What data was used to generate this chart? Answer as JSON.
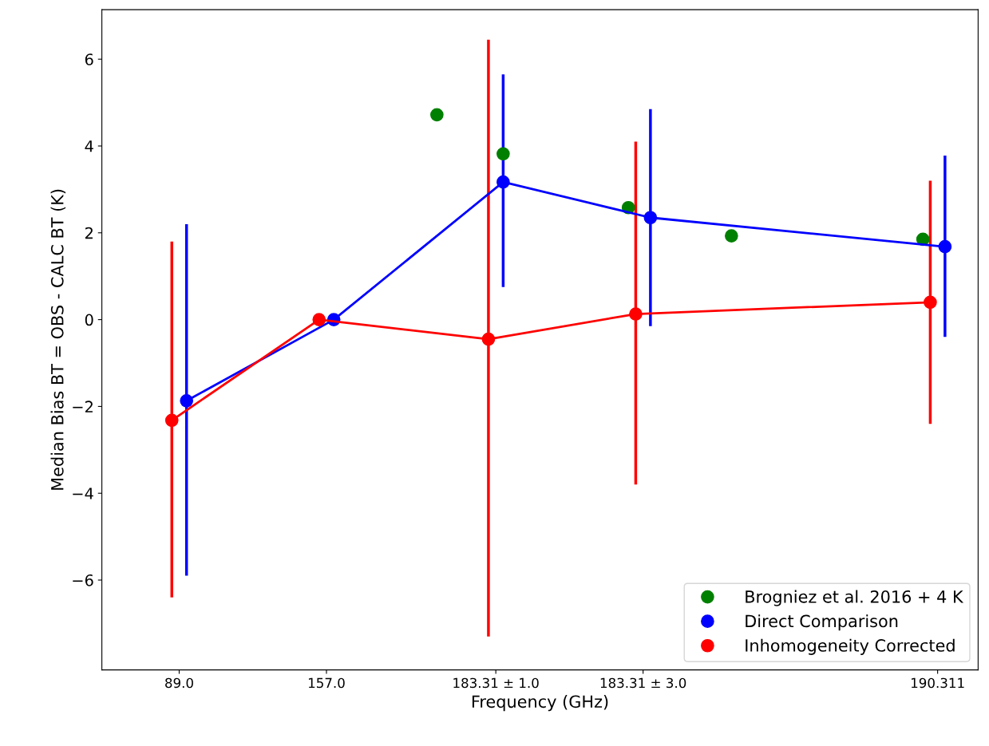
{
  "chart_data": {
    "type": "line",
    "xlabel": "Frequency (GHz)",
    "ylabel": "Median Bias BT = OBS - CALC BT (K)",
    "categories": [
      null,
      null,
      null,
      null,
      null,
      null,
      null,
      null,
      null,
      null,
      "89.0",
      null,
      null,
      null,
      null,
      null,
      null,
      null,
      null,
      null,
      null,
      null,
      null,
      null,
      null,
      null,
      null,
      null,
      null,
      null,
      "157.0",
      null,
      null,
      null,
      null,
      null,
      null,
      null,
      null,
      null,
      null,
      null,
      null,
      null,
      null,
      null,
      null,
      null,
      null,
      null,
      null,
      null,
      null,
      "183.31 ± 1.0",
      null,
      null,
      null,
      null,
      null,
      null,
      null,
      null,
      null,
      null,
      null,
      null,
      null,
      null,
      null,
      null,
      null,
      null,
      null,
      "183.31 ± 3.0",
      null,
      null,
      null,
      null,
      null,
      null,
      null,
      null,
      null,
      null,
      null,
      null,
      null,
      null,
      null,
      null,
      null,
      null,
      null,
      null,
      null,
      null,
      null,
      null,
      null,
      null,
      null,
      null,
      null,
      null,
      null,
      null,
      null,
      null,
      null,
      null,
      null,
      null,
      null,
      "190.311",
      null,
      null,
      null,
      null,
      null
    ],
    "ylim": [
      -8.07,
      7.14
    ],
    "yticks": [
      {
        "value": -6,
        "label": "−6"
      },
      {
        "value": -4,
        "label": "−4"
      },
      {
        "value": -2,
        "label": "−2"
      },
      0,
      2,
      4,
      6
    ],
    "legend": "bottom right",
    "marker": "circle",
    "series": [
      {
        "name": "Brogniez et al. 2016 + 4 K",
        "type": "scatter",
        "color": "#008000",
        "values": [
          null,
          null,
          null,
          null,
          null,
          null,
          null,
          null,
          null,
          null,
          null,
          null,
          null,
          null,
          null,
          null,
          null,
          null,
          null,
          null,
          null,
          null,
          null,
          null,
          null,
          null,
          null,
          null,
          null,
          null,
          null,
          null,
          null,
          null,
          null,
          null,
          null,
          null,
          null,
          null,
          null,
          null,
          null,
          null,
          null,
          4.72,
          null,
          null,
          null,
          null,
          null,
          null,
          null,
          null,
          3.82,
          null,
          null,
          null,
          null,
          null,
          null,
          null,
          null,
          null,
          null,
          null,
          null,
          null,
          null,
          null,
          null,
          2.58,
          null,
          null,
          null,
          null,
          null,
          null,
          null,
          null,
          null,
          null,
          null,
          null,
          null,
          1.93,
          null,
          null,
          null,
          null,
          null,
          null,
          null,
          null,
          null,
          null,
          null,
          null,
          null,
          null,
          null,
          null,
          null,
          null,
          null,
          null,
          null,
          null,
          null,
          null,
          null,
          1.85,
          null,
          null,
          null,
          null,
          null,
          null,
          null
        ]
      },
      {
        "name": "Direct Comparison",
        "color": "#0000ff",
        "values": [
          null,
          null,
          null,
          null,
          null,
          null,
          null,
          null,
          null,
          null,
          null,
          -1.87,
          null,
          null,
          null,
          null,
          null,
          null,
          null,
          null,
          null,
          null,
          null,
          null,
          null,
          null,
          null,
          null,
          null,
          null,
          null,
          0.0,
          null,
          null,
          null,
          null,
          null,
          null,
          null,
          null,
          null,
          null,
          null,
          null,
          null,
          null,
          null,
          null,
          null,
          null,
          null,
          null,
          null,
          null,
          3.17,
          null,
          null,
          null,
          null,
          null,
          null,
          null,
          null,
          null,
          null,
          null,
          null,
          null,
          null,
          null,
          null,
          null,
          null,
          null,
          2.35,
          null,
          null,
          null,
          null,
          null,
          null,
          null,
          null,
          null,
          null,
          null,
          null,
          null,
          null,
          null,
          null,
          null,
          null,
          null,
          null,
          null,
          null,
          null,
          null,
          null,
          null,
          null,
          null,
          null,
          null,
          null,
          null,
          null,
          null,
          null,
          null,
          null,
          null,
          null,
          1.68,
          null,
          null,
          null,
          null
        ],
        "errors": [
          null,
          null,
          null,
          null,
          null,
          null,
          null,
          null,
          null,
          null,
          null,
          [
            -5.9,
            2.2
          ],
          null,
          null,
          null,
          null,
          null,
          null,
          null,
          null,
          null,
          null,
          null,
          null,
          null,
          null,
          null,
          null,
          null,
          null,
          null,
          null,
          null,
          null,
          null,
          null,
          null,
          null,
          null,
          null,
          null,
          null,
          null,
          null,
          null,
          null,
          null,
          null,
          null,
          null,
          null,
          null,
          null,
          null,
          [
            0.75,
            5.65
          ],
          null,
          null,
          null,
          null,
          null,
          null,
          null,
          null,
          null,
          null,
          null,
          null,
          null,
          null,
          null,
          null,
          null,
          null,
          null,
          [
            -0.15,
            4.85
          ],
          null,
          null,
          null,
          null,
          null,
          null,
          null,
          null,
          null,
          null,
          null,
          null,
          null,
          null,
          null,
          null,
          null,
          null,
          null,
          null,
          null,
          null,
          null,
          null,
          null,
          null,
          null,
          null,
          null,
          null,
          null,
          null,
          null,
          null,
          null,
          null,
          null,
          null,
          null,
          [
            -0.4,
            3.78
          ],
          null,
          null,
          null,
          null
        ]
      },
      {
        "name": "Inhomogeneity Corrected",
        "color": "#ff0000",
        "values": [
          null,
          null,
          null,
          null,
          null,
          null,
          null,
          null,
          null,
          -2.32,
          null,
          null,
          null,
          null,
          null,
          null,
          null,
          null,
          null,
          null,
          null,
          null,
          null,
          null,
          null,
          null,
          null,
          null,
          null,
          0.0,
          null,
          null,
          null,
          null,
          null,
          null,
          null,
          null,
          null,
          null,
          null,
          null,
          null,
          null,
          null,
          null,
          null,
          null,
          null,
          null,
          null,
          null,
          -0.45,
          null,
          null,
          null,
          null,
          null,
          null,
          null,
          null,
          null,
          null,
          null,
          null,
          null,
          null,
          null,
          null,
          null,
          null,
          null,
          0.13,
          null,
          null,
          null,
          null,
          null,
          null,
          null,
          null,
          null,
          null,
          null,
          null,
          null,
          null,
          null,
          null,
          null,
          null,
          null,
          null,
          null,
          null,
          null,
          null,
          null,
          null,
          null,
          null,
          null,
          null,
          null,
          null,
          null,
          null,
          null,
          null,
          null,
          null,
          null,
          0.4,
          null,
          null,
          null,
          null,
          null,
          null
        ],
        "errors": [
          null,
          null,
          null,
          null,
          null,
          null,
          null,
          null,
          null,
          [
            -6.4,
            1.8
          ],
          null,
          null,
          null,
          null,
          null,
          null,
          null,
          null,
          null,
          null,
          null,
          null,
          null,
          null,
          null,
          null,
          null,
          null,
          null,
          null,
          null,
          null,
          null,
          null,
          null,
          null,
          null,
          null,
          null,
          null,
          null,
          null,
          null,
          null,
          null,
          null,
          null,
          null,
          null,
          null,
          null,
          null,
          [
            -7.3,
            6.45
          ],
          null,
          null,
          null,
          null,
          null,
          null,
          null,
          null,
          null,
          null,
          null,
          null,
          null,
          null,
          null,
          null,
          null,
          null,
          null,
          [
            -3.8,
            4.1
          ],
          null,
          null,
          null,
          null,
          null,
          null,
          null,
          null,
          null,
          null,
          null,
          null,
          null,
          null,
          null,
          null,
          null,
          null,
          null,
          null,
          null,
          null,
          null,
          null,
          null,
          null,
          null,
          null,
          null,
          null,
          null,
          null,
          null,
          null,
          null,
          null,
          null,
          null,
          null,
          [
            -2.4,
            3.2
          ],
          null,
          null,
          null,
          null,
          null,
          null
        ]
      }
    ]
  }
}
